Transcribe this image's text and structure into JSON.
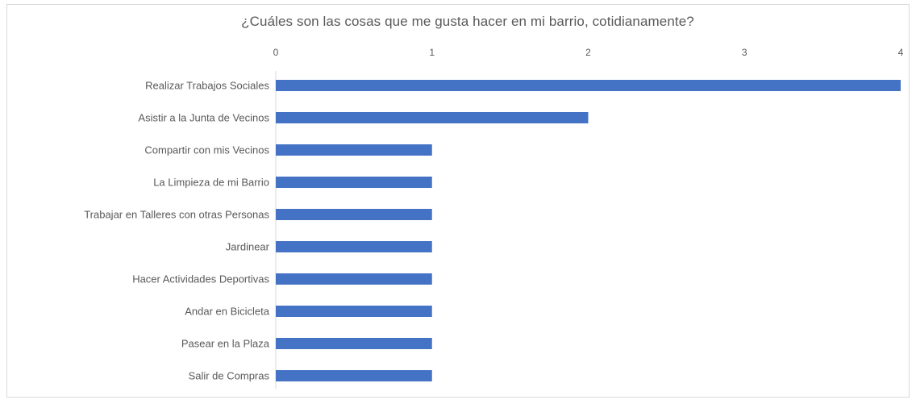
{
  "chart_data": {
    "type": "bar",
    "orientation": "horizontal",
    "title": "¿Cuáles son las cosas que me gusta hacer en mi barrio, cotidianamente?",
    "categories": [
      "Realizar Trabajos Sociales",
      "Asistir a la Junta de Vecinos",
      "Compartir con mis Vecinos",
      "La Limpieza de mi Barrio",
      "Trabajar en Talleres con otras Personas",
      "Jardinear",
      "Hacer Actividades Deportivas",
      "Andar en Bicicleta",
      "Pasear en la Plaza",
      "Salir de Compras"
    ],
    "values": [
      4,
      2,
      1,
      1,
      1,
      1,
      1,
      1,
      1,
      1
    ],
    "xlim": [
      0,
      4
    ],
    "x_ticks": [
      0,
      1,
      2,
      3,
      4
    ],
    "x_tick_labels": [
      "0",
      "1",
      "2",
      "3",
      "4"
    ],
    "x_axis_position": "top",
    "grid": false,
    "legend": "none",
    "bar_color": "#4472c4"
  }
}
